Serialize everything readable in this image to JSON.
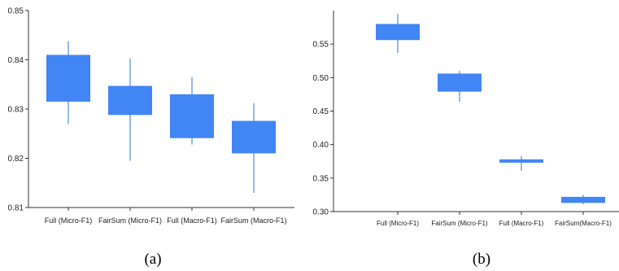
{
  "chart_data": [
    {
      "type": "box",
      "caption": "(a)",
      "categories": [
        "Full (Micro-F1)",
        "FairSum (Micro-F1)",
        "Full (Macro-F1)",
        "FairSum (Macro-F1)"
      ],
      "boxes": [
        {
          "whisker_low": 0.827,
          "q1": 0.8315,
          "q3": 0.841,
          "whisker_high": 0.8438
        },
        {
          "whisker_low": 0.8195,
          "q1": 0.8288,
          "q3": 0.8347,
          "whisker_high": 0.8403
        },
        {
          "whisker_low": 0.8228,
          "q1": 0.8241,
          "q3": 0.833,
          "whisker_high": 0.8365
        },
        {
          "whisker_low": 0.813,
          "q1": 0.821,
          "q3": 0.8276,
          "whisker_high": 0.8312
        }
      ],
      "ylim": [
        0.81,
        0.85
      ],
      "yticks": [
        "0.81",
        "0.82",
        "0.83",
        "0.84",
        "0.85"
      ],
      "ytick_values": [
        0.81,
        0.82,
        0.83,
        0.84,
        0.85
      ],
      "colors": {
        "box": "#4285f4",
        "whisker": "#4a90e2",
        "axis": "#333333"
      }
    },
    {
      "type": "box",
      "caption": "(b)",
      "categories": [
        "Full (Micro-F1)",
        "FairSum (Micro-F1)",
        "Full (Macro-F1)",
        "FairSum(Macro-F1)"
      ],
      "boxes": [
        {
          "whisker_low": 0.537,
          "q1": 0.556,
          "q3": 0.58,
          "whisker_high": 0.595
        },
        {
          "whisker_low": 0.464,
          "q1": 0.479,
          "q3": 0.506,
          "whisker_high": 0.51
        },
        {
          "whisker_low": 0.361,
          "q1": 0.373,
          "q3": 0.378,
          "whisker_high": 0.383
        },
        {
          "whisker_low": 0.311,
          "q1": 0.313,
          "q3": 0.322,
          "whisker_high": 0.325
        }
      ],
      "ylim": [
        0.3,
        0.6
      ],
      "yticks": [
        "0.30",
        "0.35",
        "0.40",
        "0.45",
        "0.50",
        "0.55"
      ],
      "ytick_values": [
        0.3,
        0.35,
        0.4,
        0.45,
        0.5,
        0.55
      ],
      "colors": {
        "box": "#4285f4",
        "whisker": "#4a90e2",
        "axis": "#333333"
      }
    }
  ]
}
